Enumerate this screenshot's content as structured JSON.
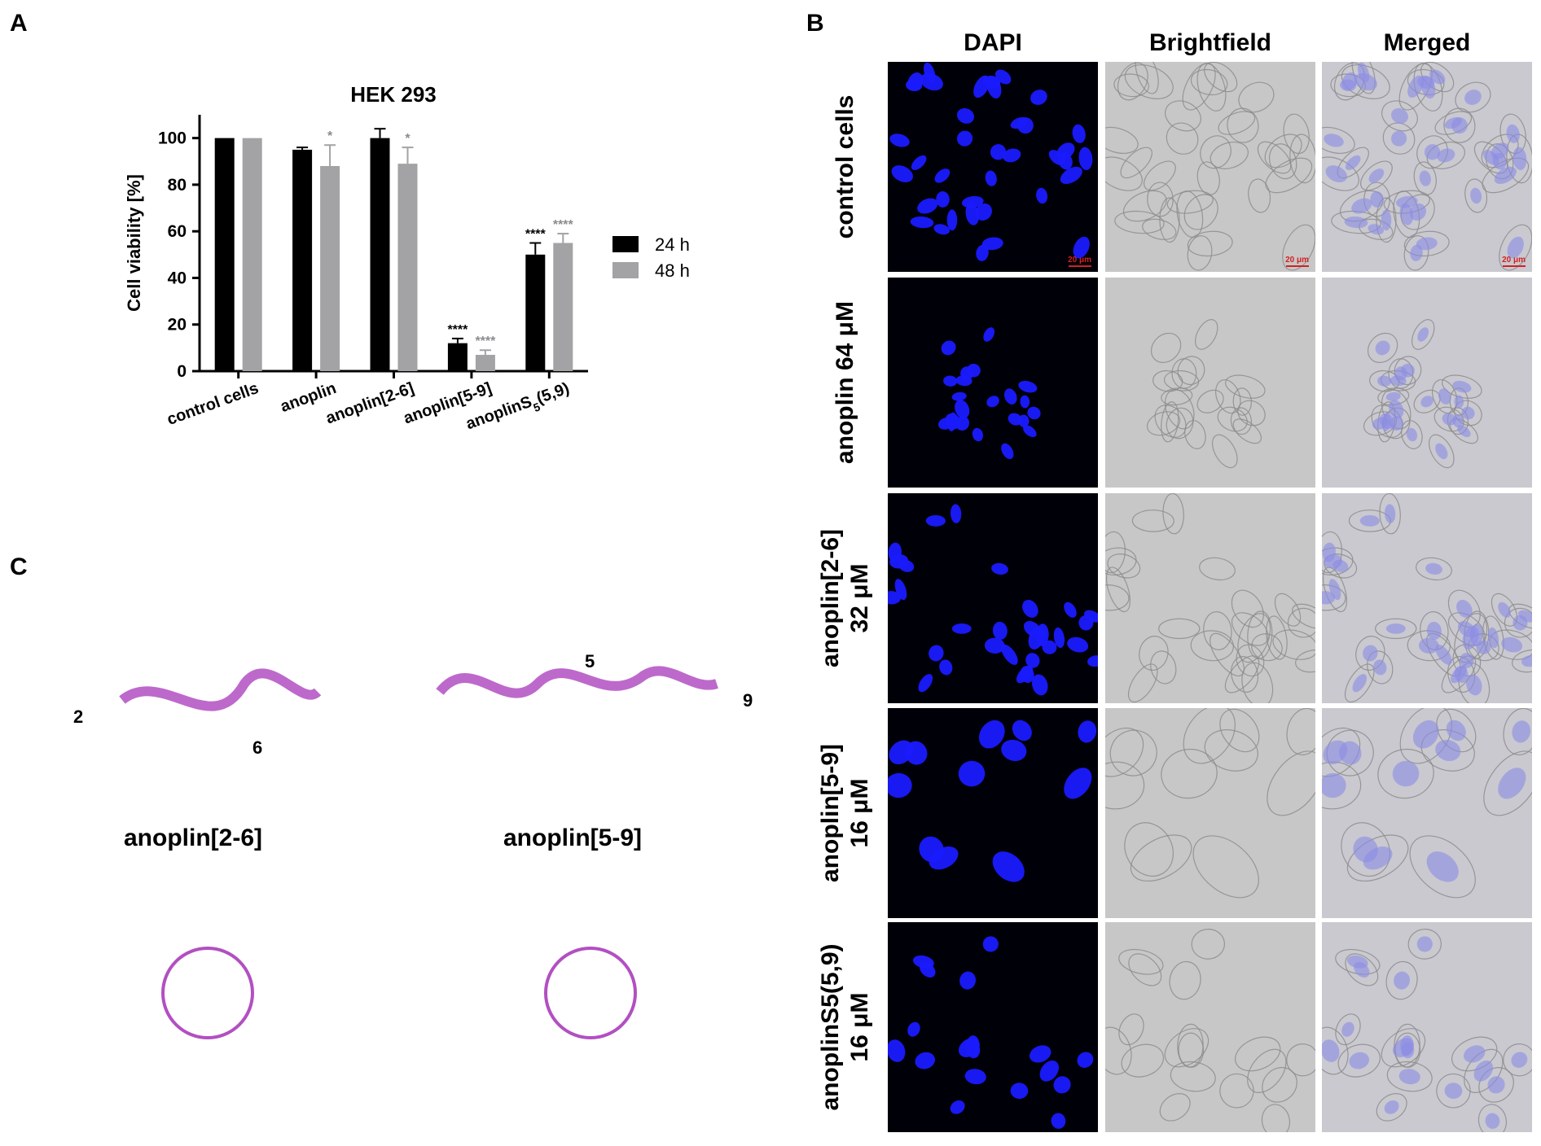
{
  "panels": {
    "a": "A",
    "b": "B",
    "c": "C"
  },
  "chart_data": {
    "type": "bar",
    "title": "HEK 293",
    "ylabel": "Cell viability [%]",
    "xlabel": "",
    "ylim": [
      0,
      110
    ],
    "yticks": [
      0,
      20,
      40,
      60,
      80,
      100
    ],
    "categories": [
      "control cells",
      "anoplin",
      "anoplin[2-6]",
      "anoplin[5-9]",
      "anoplinS5(5,9)"
    ],
    "series": [
      {
        "name": "24 h",
        "color": "#000000",
        "values": [
          100,
          95,
          100,
          12,
          50
        ],
        "errors": [
          0,
          1,
          4,
          2,
          5
        ],
        "significance": [
          "",
          "",
          "",
          "****",
          "****"
        ]
      },
      {
        "name": "48 h",
        "color": "#a3a3a6",
        "values": [
          100,
          88,
          89,
          7,
          55
        ],
        "errors": [
          0,
          9,
          7,
          2,
          4
        ],
        "significance": [
          "",
          "*",
          "*",
          "****",
          "****"
        ]
      }
    ],
    "legend_position": "right"
  },
  "panel_b": {
    "columns": [
      "DAPI",
      "Brightfield",
      "Merged"
    ],
    "rows": [
      {
        "label_lines": [
          "control cells"
        ]
      },
      {
        "label_lines": [
          "anoplin 64 μM"
        ]
      },
      {
        "label_lines": [
          "anoplin[2-6]",
          "32 μM"
        ]
      },
      {
        "label_lines": [
          "anoplin[5-9]",
          "16 μM"
        ]
      },
      {
        "label_lines": [
          "anoplinS5(5,9)",
          "16 μM"
        ]
      }
    ],
    "scale_bar": "20 μm"
  },
  "panel_c": {
    "models": [
      {
        "label": "anoplin[2-6]",
        "residues": [
          "2",
          "6"
        ]
      },
      {
        "label": "anoplin[5-9]",
        "residues": [
          "5",
          "9"
        ]
      }
    ],
    "colors": {
      "basic": "#4444dd",
      "staple": "#e0963c",
      "hydrophobic": "#5a5a5a",
      "backbone": "#b24fc2"
    }
  }
}
